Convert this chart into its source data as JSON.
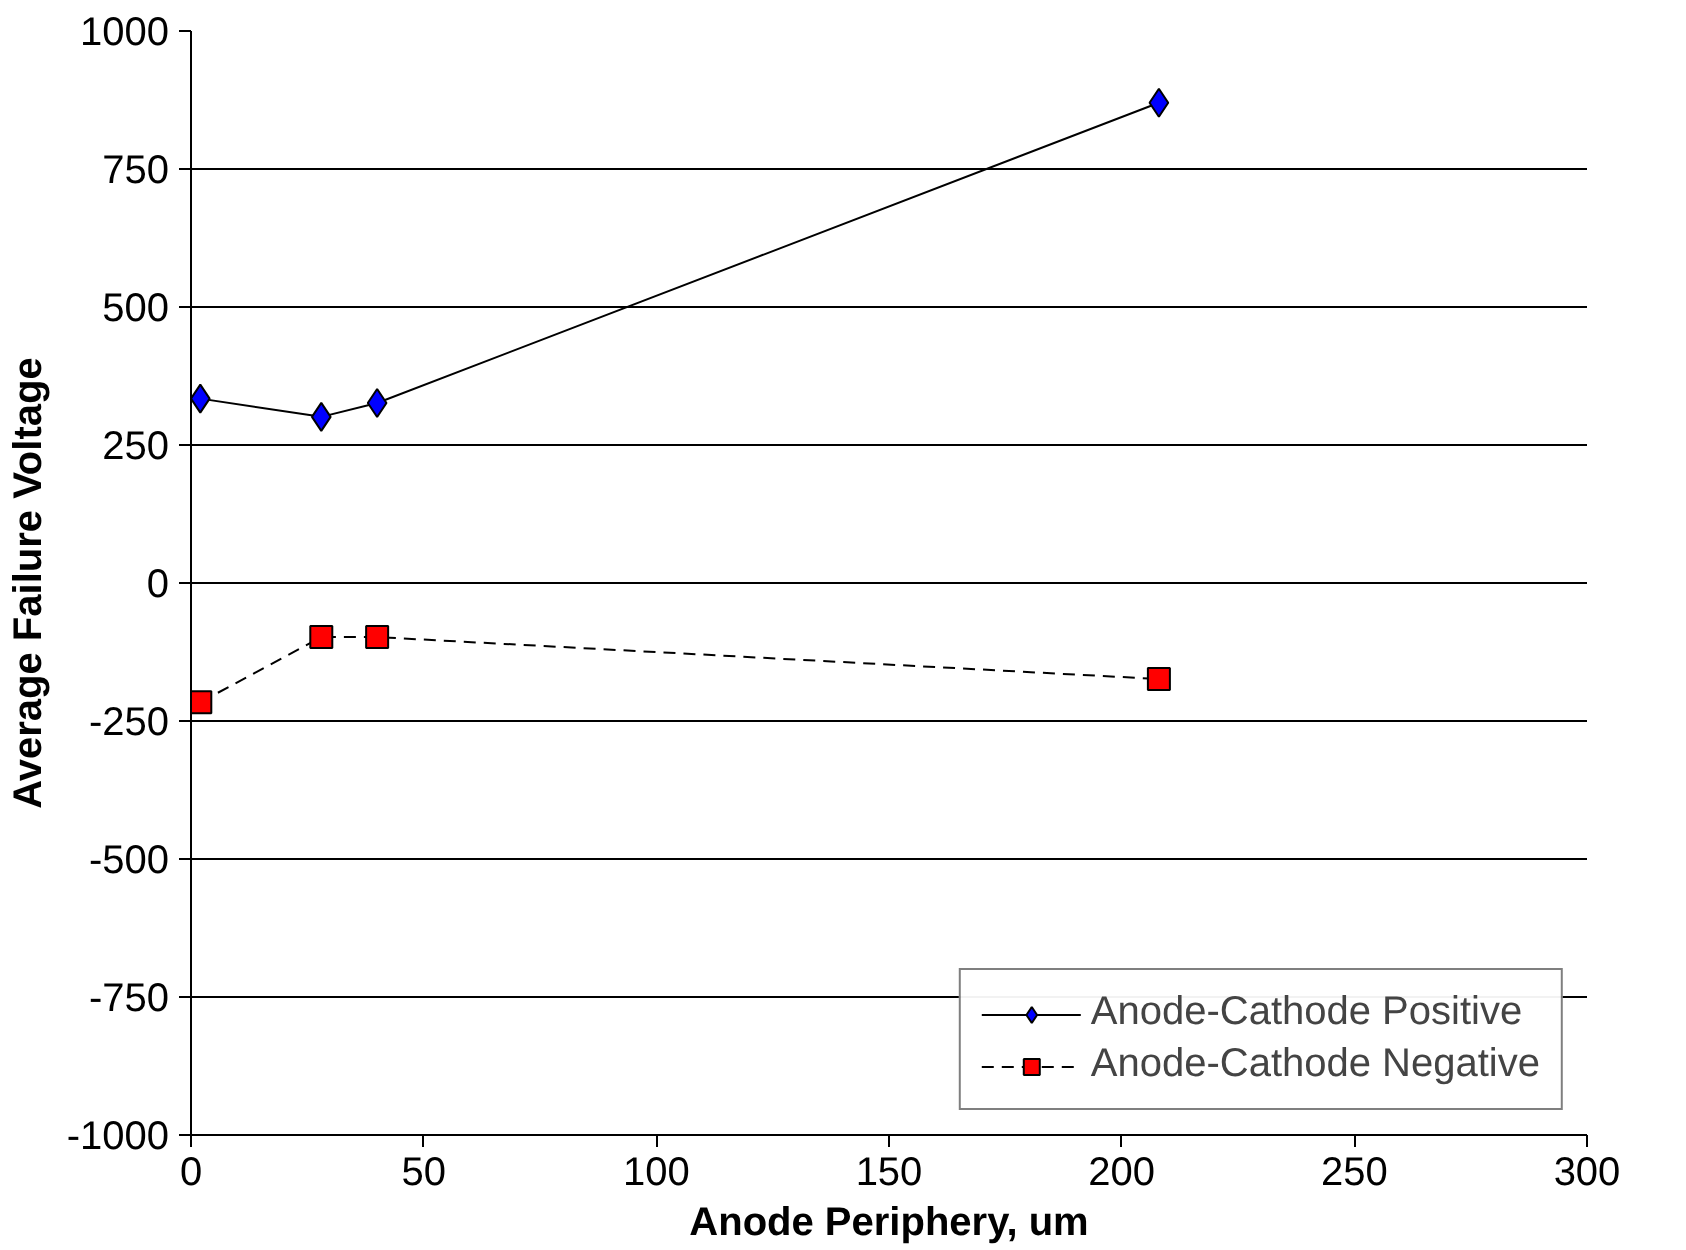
{
  "chart_data": {
    "type": "line",
    "xlabel": "Anode Periphery, um",
    "ylabel": "Average Failure Voltage",
    "x": [
      2,
      28,
      40,
      208
    ],
    "series": [
      {
        "name": "Anode-Cathode Positive",
        "color": "#0000ff",
        "values": [
          334,
          301,
          326,
          870
        ],
        "marker": "diamond",
        "line_style": "solid"
      },
      {
        "name": "Anode-Cathode Negative",
        "color": "#ff0000",
        "values": [
          -216,
          -98,
          -98,
          -174
        ],
        "marker": "square",
        "line_style": "dashed"
      }
    ],
    "xlim": [
      0,
      300
    ],
    "xticks": [
      0,
      50,
      100,
      150,
      200,
      250,
      300
    ],
    "ylim": [
      -1000,
      1000
    ],
    "yticks": [
      -1000,
      -750,
      -500,
      -250,
      0,
      250,
      500,
      750,
      1000
    ],
    "grid": "y",
    "legend": "bottom right"
  }
}
